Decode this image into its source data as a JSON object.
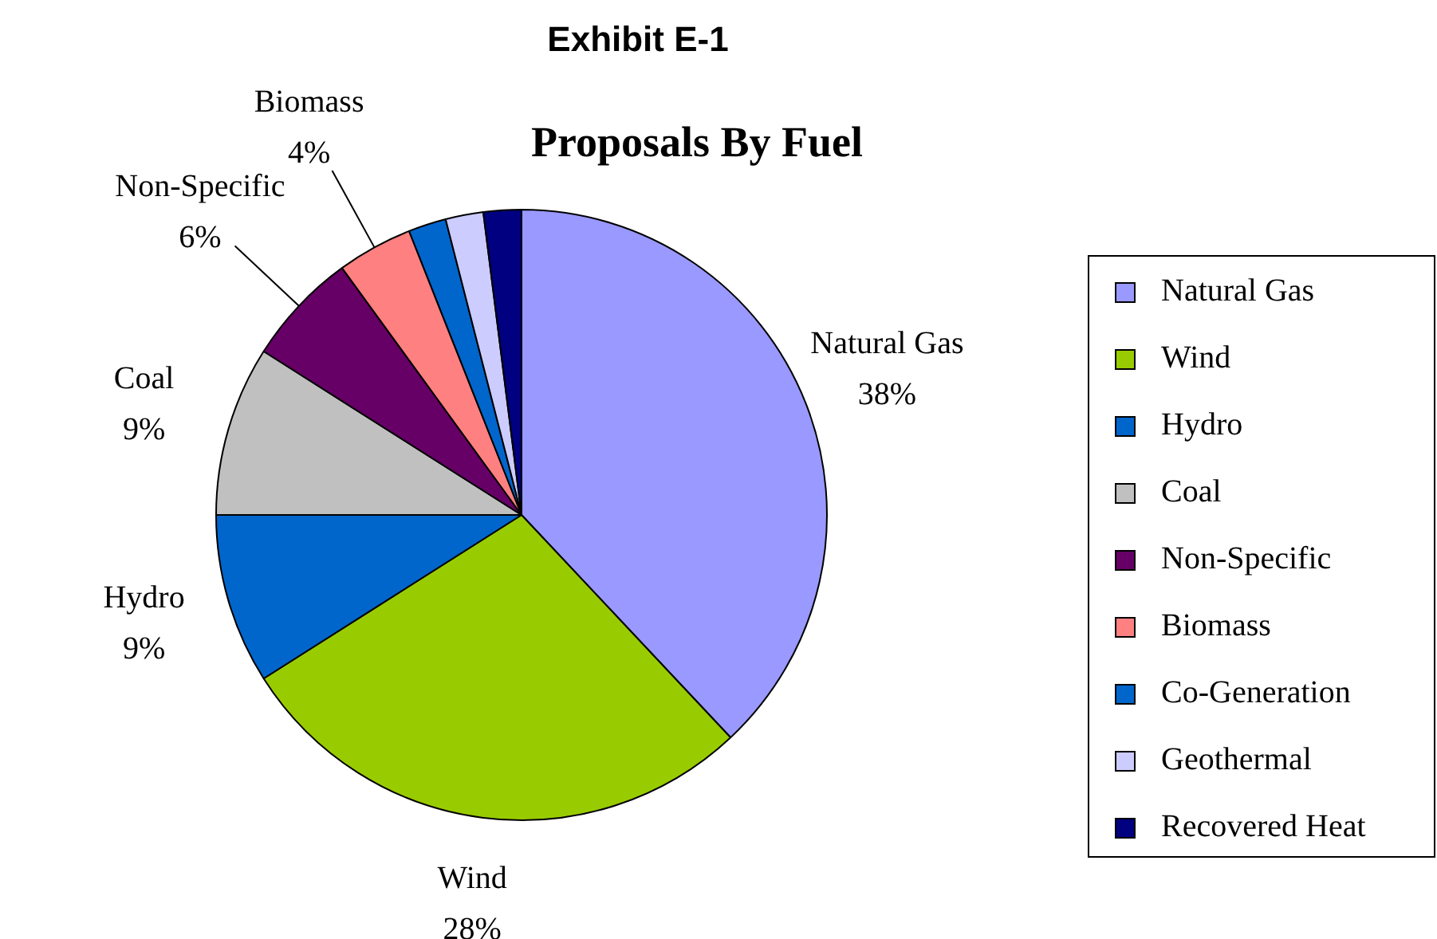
{
  "chart_data": {
    "type": "pie",
    "title": "Exhibit E-1",
    "subtitle": "Proposals By Fuel",
    "categories": [
      "Natural Gas",
      "Wind",
      "Hydro",
      "Coal",
      "Non-Specific",
      "Biomass",
      "Co-Generation",
      "Geothermal",
      "Recovered Heat"
    ],
    "values": [
      38,
      28,
      9,
      9,
      6,
      4,
      2,
      2,
      2
    ],
    "colors": [
      "#9999ff",
      "#99cc00",
      "#0066cc",
      "#c0c0c0",
      "#660066",
      "#ff8080",
      "#0066cc",
      "#ccccff",
      "#000080"
    ],
    "value_labels": [
      "38%",
      "28%",
      "9%",
      "9%",
      "6%",
      "4%",
      null,
      null,
      null
    ],
    "legend": "right"
  }
}
